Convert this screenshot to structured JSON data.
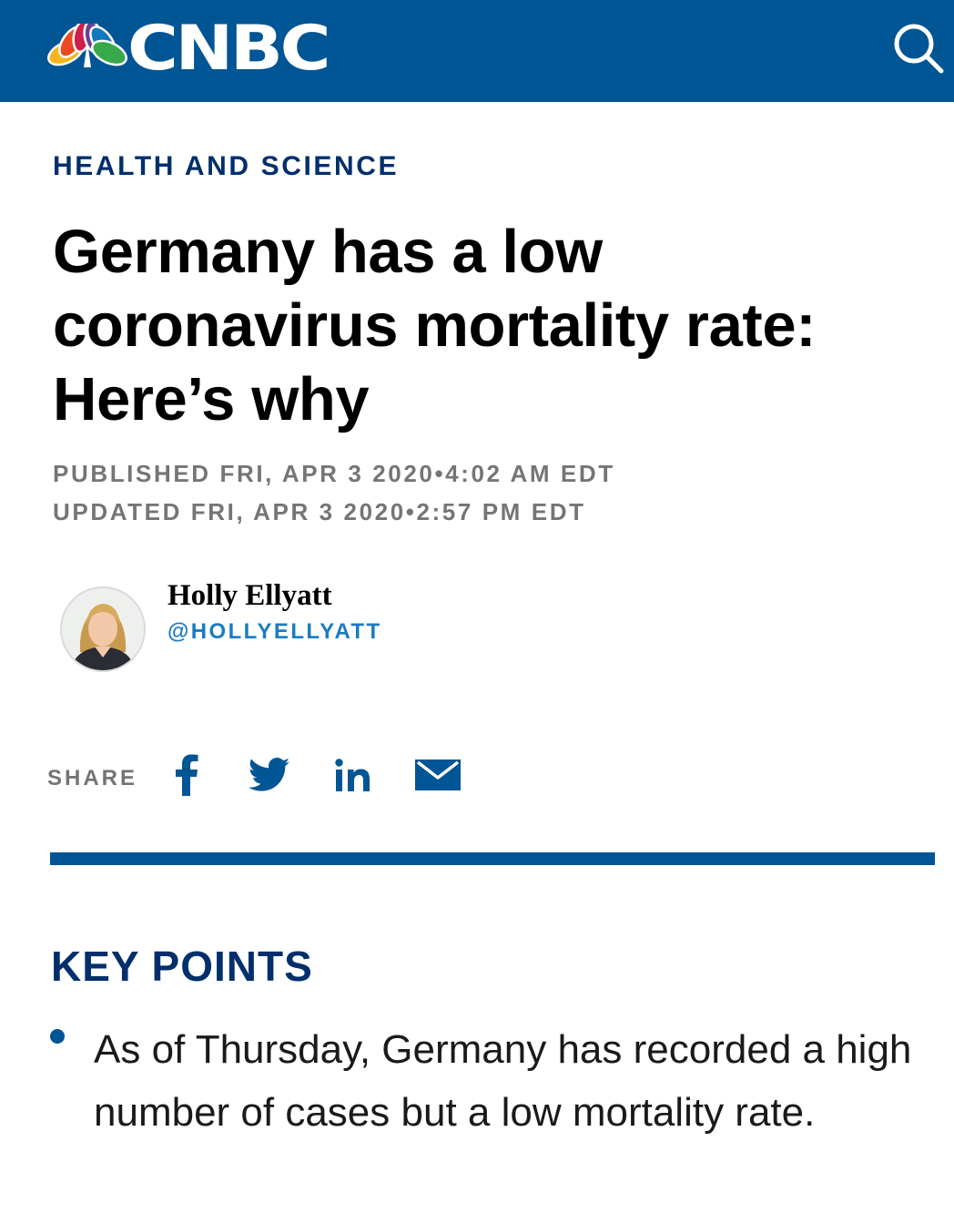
{
  "header": {
    "brand": "CNBC",
    "search_icon": "search-icon",
    "background_color": "#005594"
  },
  "article": {
    "section": "HEALTH AND SCIENCE",
    "headline": "Germany has a low coronavirus mortality rate: Here’s why",
    "published": "PUBLISHED FRI, APR 3 2020•4:02 AM EDT",
    "updated": "UPDATED FRI, APR 3 2020•2:57 PM EDT"
  },
  "author": {
    "name": "Holly Ellyatt",
    "handle": "@HOLLYELLYATT"
  },
  "share": {
    "label": "SHARE",
    "icons": [
      "facebook-icon",
      "twitter-icon",
      "linkedin-icon",
      "email-icon"
    ],
    "icon_color": "#005594"
  },
  "key_points": {
    "title": "KEY POINTS",
    "items": [
      "As of Thursday, Germany has recorded a high number of cases but a low mortality rate."
    ]
  }
}
